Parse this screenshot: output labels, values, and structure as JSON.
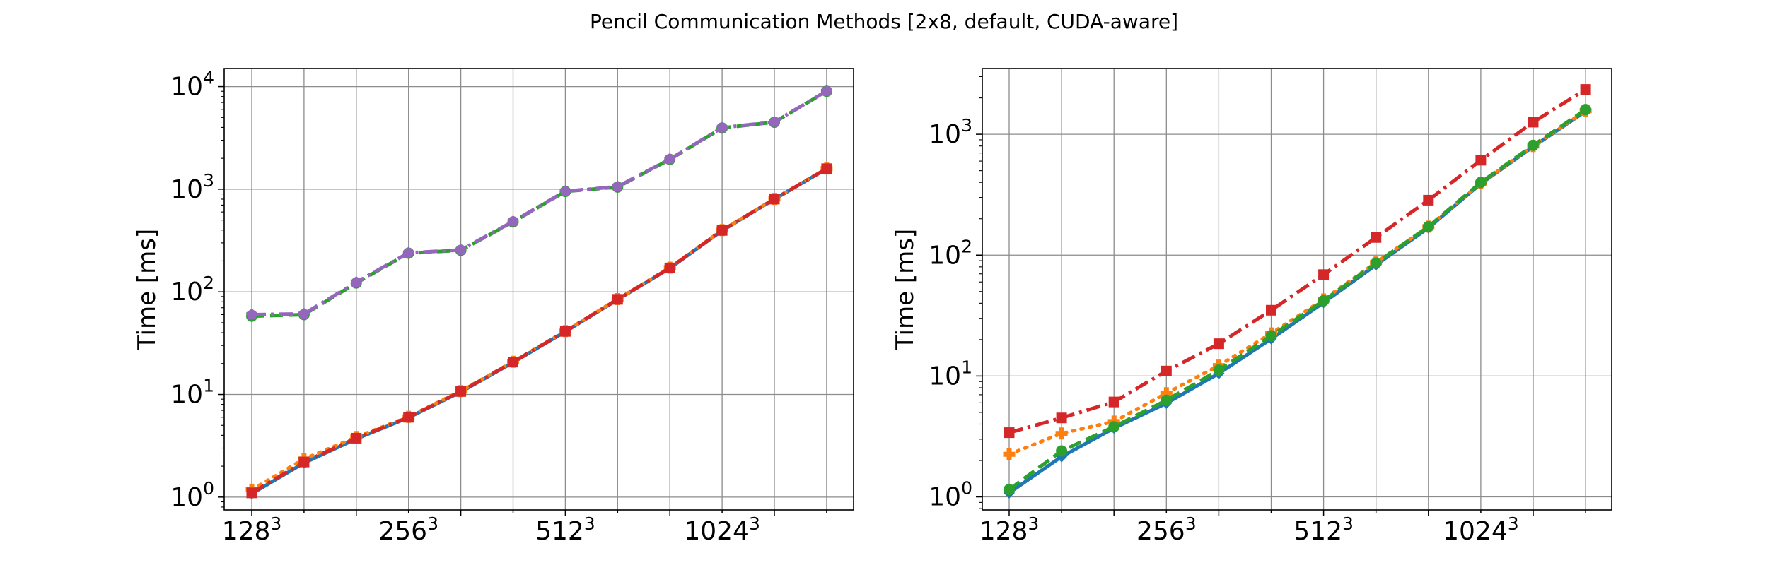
{
  "figure": {
    "suptitle": "Pencil Communication Methods [2x8, default, CUDA-aware]"
  },
  "chart_data": [
    {
      "type": "line",
      "panel": "left",
      "ylabel": "Time [ms]",
      "xlabel": "",
      "yscale": "log",
      "ylim": [
        0.75,
        15000
      ],
      "grid": true,
      "x_ticks": [
        {
          "base": "128",
          "exp": "3"
        },
        {
          "base": "256",
          "exp": "3"
        },
        {
          "base": "512",
          "exp": "3"
        },
        {
          "base": "1024",
          "exp": "3"
        }
      ],
      "y_ticks": [
        {
          "base": "10",
          "exp": "0"
        },
        {
          "base": "10",
          "exp": "1"
        },
        {
          "base": "10",
          "exp": "2"
        },
        {
          "base": "10",
          "exp": "3"
        },
        {
          "base": "10",
          "exp": "4"
        }
      ],
      "series": [
        {
          "color": "#1f77b4",
          "linestyle": "solid",
          "marker": "diamond",
          "values": [
            1.08,
            2.15,
            3.7,
            5.95,
            10.6,
            20.5,
            41,
            84,
            170,
            395,
            800,
            1580
          ]
        },
        {
          "color": "#ff7f0e",
          "linestyle": "dotted",
          "marker": "cross",
          "values": [
            1.18,
            2.35,
            3.85,
            6.05,
            10.8,
            20.8,
            41.5,
            85,
            172,
            400,
            805,
            1590
          ]
        },
        {
          "color": "#2ca02c",
          "linestyle": "dashed",
          "marker": "circle",
          "values": [
            58,
            60,
            122,
            238,
            254,
            480,
            950,
            1050,
            1950,
            3950,
            4500,
            9000
          ]
        },
        {
          "color": "#d62728",
          "linestyle": "dashdot",
          "marker": "square",
          "values": [
            1.1,
            2.2,
            3.75,
            6.0,
            10.7,
            20.7,
            41.2,
            84.5,
            171,
            397,
            802,
            1585
          ]
        },
        {
          "color": "#9467bd",
          "linestyle": "dashdot",
          "marker": "pentagon",
          "values": [
            60,
            61,
            124,
            240,
            256,
            485,
            955,
            1060,
            1960,
            3980,
            4520,
            9050
          ]
        }
      ]
    },
    {
      "type": "line",
      "panel": "right",
      "ylabel": "Time [ms]",
      "xlabel": "",
      "yscale": "log",
      "ylim": [
        0.78,
        3500
      ],
      "grid": true,
      "x_ticks": [
        {
          "base": "128",
          "exp": "3"
        },
        {
          "base": "256",
          "exp": "3"
        },
        {
          "base": "512",
          "exp": "3"
        },
        {
          "base": "1024",
          "exp": "3"
        }
      ],
      "y_ticks": [
        {
          "base": "10",
          "exp": "0"
        },
        {
          "base": "10",
          "exp": "1"
        },
        {
          "base": "10",
          "exp": "2"
        },
        {
          "base": "10",
          "exp": "3"
        }
      ],
      "series": [
        {
          "color": "#1f77b4",
          "linestyle": "solid",
          "marker": "diamond",
          "values": [
            1.08,
            2.15,
            3.7,
            5.95,
            10.5,
            20.3,
            40.5,
            83,
            168,
            390,
            790,
            1550
          ]
        },
        {
          "color": "#ff7f0e",
          "linestyle": "dotted",
          "marker": "cross",
          "values": [
            2.25,
            3.35,
            4.2,
            7.2,
            12.2,
            22.5,
            43,
            87,
            172,
            395,
            800,
            1565
          ]
        },
        {
          "color": "#d62728",
          "linestyle": "dashdot",
          "marker": "square",
          "values": [
            3.4,
            4.5,
            6.1,
            11,
            18.5,
            35,
            69,
            140,
            285,
            610,
            1260,
            2350
          ]
        },
        {
          "color": "#2ca02c",
          "linestyle": "dashed",
          "marker": "circle",
          "values": [
            1.15,
            2.4,
            3.8,
            6.3,
            11.2,
            21.5,
            42,
            86,
            172,
            400,
            810,
            1600
          ]
        }
      ]
    }
  ]
}
